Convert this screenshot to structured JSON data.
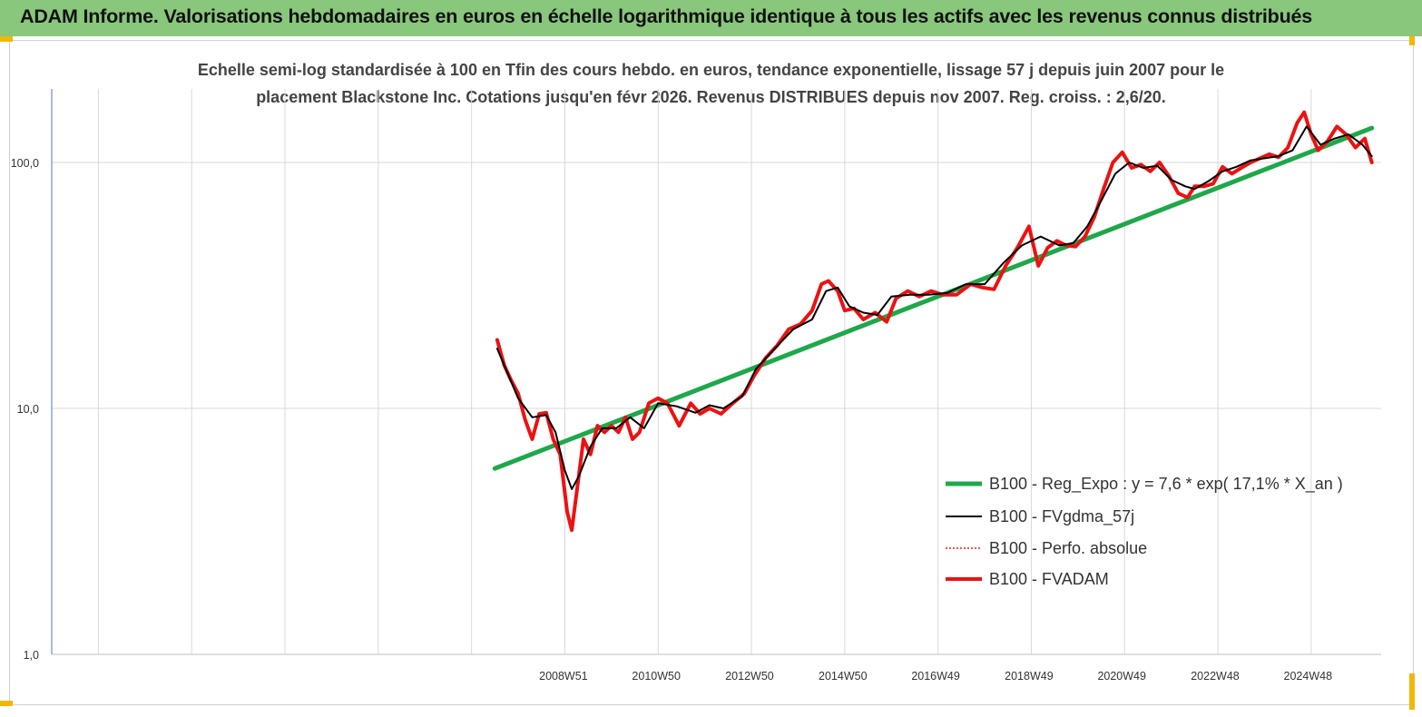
{
  "header": {
    "title": "ADAM Informe. Valorisations hebdomadaires en euros en échelle logarithmique identique à tous les actifs avec les revenus connus distribués",
    "background_color": "#88c77c"
  },
  "chart_data": {
    "type": "line",
    "title": "Echelle semi-log standardisée à 100 en Tfin des cours hebdo. en euros, tendance exponentielle, lissage 57 j depuis juin 2007 pour le",
    "subtitle": "placement Blackstone Inc. Cotations jusqu'en févr 2026. Revenus DISTRIBUES depuis nov 2007. Reg. croiss. : 2,6/20.",
    "yscale": "log",
    "ylim": [
      1,
      180
    ],
    "y_tick_labels": [
      "1,0",
      "10,0",
      "100,0"
    ],
    "y_ticks": [
      1,
      10,
      100
    ],
    "xlim": [
      1998.0,
      2026.5
    ],
    "x_tick_labels": [
      "2008W51",
      "2010W50",
      "2012W50",
      "2014W50",
      "2016W49",
      "2018W49",
      "2020W49",
      "2022W48",
      "2024W48"
    ],
    "x_tick_positions": [
      2008.97,
      2010.96,
      2012.96,
      2014.96,
      2016.95,
      2018.95,
      2020.94,
      2022.94,
      2024.93
    ],
    "grid": "vertical",
    "legend_position": "right",
    "series": [
      {
        "name": "B100 - Reg_Expo : y = 7,6 * exp( 17,1% *  X_an )",
        "color": "#1ea84a",
        "style": "solid-thick",
        "x": [
          2007.5,
          2026.3
        ],
        "y": [
          5.7,
          138
        ]
      },
      {
        "name": "B100 - FVgdma_57j",
        "color": "#000000",
        "style": "solid-thin",
        "x": [
          2007.55,
          2007.8,
          2008.0,
          2008.3,
          2008.6,
          2008.8,
          2009.0,
          2009.15,
          2009.3,
          2009.55,
          2009.8,
          2010.1,
          2010.4,
          2010.7,
          2011.0,
          2011.4,
          2011.8,
          2012.1,
          2012.4,
          2012.8,
          2013.1,
          2013.5,
          2013.9,
          2014.3,
          2014.6,
          2014.85,
          2015.1,
          2015.4,
          2015.7,
          2016.0,
          2016.4,
          2016.8,
          2017.2,
          2017.6,
          2018.0,
          2018.4,
          2018.8,
          2019.2,
          2019.6,
          2019.9,
          2020.2,
          2020.5,
          2020.8,
          2021.1,
          2021.4,
          2021.7,
          2022.0,
          2022.3,
          2022.5,
          2022.8,
          2023.1,
          2023.4,
          2023.7,
          2024.0,
          2024.3,
          2024.6,
          2024.9,
          2025.2,
          2025.5,
          2025.8,
          2026.1,
          2026.3
        ],
        "y": [
          17.5,
          13.5,
          11.0,
          9.2,
          9.4,
          8.0,
          5.6,
          4.7,
          5.3,
          7.0,
          8.3,
          8.3,
          9.2,
          8.3,
          10.5,
          10.2,
          9.6,
          10.3,
          10.0,
          11.2,
          14.5,
          17.5,
          21.0,
          23.0,
          30.0,
          31.0,
          26.0,
          24.5,
          24.0,
          28.5,
          29.0,
          29.0,
          29.5,
          32.0,
          32.0,
          39.0,
          46.0,
          50.0,
          46.0,
          47.0,
          55.0,
          70.0,
          90.0,
          100.0,
          95.0,
          97.0,
          85.0,
          80.0,
          78.0,
          84.0,
          92.0,
          96.0,
          102.0,
          104.0,
          106.0,
          112.0,
          140.0,
          118.0,
          125.0,
          130.0,
          118.0,
          106.0
        ]
      },
      {
        "name": "B100 - Perfo. absolue",
        "color": "#e02020",
        "style": "dotted",
        "x": [],
        "y": []
      },
      {
        "name": "B100 - FVADAM",
        "color": "#ee1111",
        "style": "solid-thick",
        "x": [
          2007.55,
          2007.7,
          2007.85,
          2008.0,
          2008.15,
          2008.3,
          2008.45,
          2008.6,
          2008.75,
          2008.9,
          2009.05,
          2009.15,
          2009.25,
          2009.4,
          2009.55,
          2009.7,
          2009.85,
          2010.0,
          2010.15,
          2010.3,
          2010.45,
          2010.6,
          2010.8,
          2011.0,
          2011.2,
          2011.45,
          2011.7,
          2011.9,
          2012.1,
          2012.35,
          2012.6,
          2012.85,
          2013.05,
          2013.3,
          2013.55,
          2013.8,
          2014.05,
          2014.3,
          2014.5,
          2014.65,
          2014.85,
          2015.0,
          2015.2,
          2015.4,
          2015.65,
          2015.9,
          2016.1,
          2016.35,
          2016.6,
          2016.85,
          2017.1,
          2017.4,
          2017.7,
          2017.95,
          2018.2,
          2018.45,
          2018.7,
          2018.95,
          2019.15,
          2019.35,
          2019.55,
          2019.75,
          2019.95,
          2020.15,
          2020.35,
          2020.55,
          2020.75,
          2020.95,
          2021.15,
          2021.35,
          2021.55,
          2021.75,
          2021.95,
          2022.15,
          2022.35,
          2022.5,
          2022.7,
          2022.9,
          2023.1,
          2023.3,
          2023.5,
          2023.7,
          2023.9,
          2024.1,
          2024.3,
          2024.5,
          2024.7,
          2024.85,
          2025.0,
          2025.15,
          2025.35,
          2025.55,
          2025.75,
          2025.95,
          2026.15,
          2026.3
        ],
        "y": [
          19.0,
          15.0,
          13.0,
          11.5,
          9.0,
          7.5,
          9.5,
          9.6,
          7.5,
          6.5,
          3.8,
          3.2,
          4.5,
          7.5,
          6.5,
          8.5,
          8.0,
          8.5,
          8.0,
          9.2,
          7.5,
          8.0,
          10.5,
          11.0,
          10.5,
          8.5,
          10.5,
          9.5,
          10.0,
          9.5,
          10.5,
          11.5,
          13.5,
          16.0,
          18.0,
          21.0,
          22.0,
          25.0,
          32.0,
          33.0,
          30.0,
          25.0,
          25.5,
          23.0,
          24.5,
          22.5,
          28.0,
          30.0,
          28.5,
          30.0,
          29.0,
          29.0,
          32.0,
          31.0,
          30.5,
          38.0,
          45.0,
          55.0,
          38.0,
          45.0,
          48.0,
          46.0,
          45.5,
          50.0,
          60.0,
          78.0,
          100.0,
          110.0,
          95.0,
          98.0,
          92.0,
          100.0,
          88.0,
          75.0,
          72.0,
          80.0,
          80.0,
          82.0,
          96.0,
          90.0,
          95.0,
          100.0,
          104.0,
          108.0,
          105.0,
          115.0,
          145.0,
          160.0,
          130.0,
          112.0,
          122.0,
          140.0,
          130.0,
          115.0,
          125.0,
          100.0
        ]
      }
    ]
  }
}
